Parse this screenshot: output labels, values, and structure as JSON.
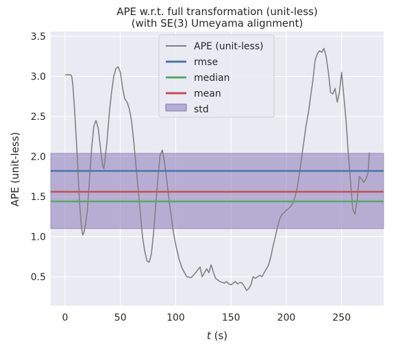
{
  "chart_data": {
    "type": "line",
    "title": "APE w.r.t. full transformation (unit-less)",
    "subtitle": "(with SE(3) Umeyama alignment)",
    "xlabel_italic": "t",
    "xlabel_unit": " (s)",
    "ylabel": "APE (unit-less)",
    "xlim": [
      -13,
      288
    ],
    "ylim": [
      0.14,
      3.56
    ],
    "xticks": [
      0,
      50,
      100,
      150,
      200,
      250
    ],
    "yticks": [
      0.5,
      1.0,
      1.5,
      2.0,
      2.5,
      3.0,
      3.5
    ],
    "grid": true,
    "legend_position": "top-center",
    "colors": {
      "background": "#eaeaf2",
      "grid": "#ffffff",
      "ape": "#808080",
      "rmse": "#4c72b0",
      "median": "#55a868",
      "mean": "#c44e52",
      "std": "#8172b2"
    },
    "series": [
      {
        "name": "APE (unit-less)",
        "kind": "line",
        "x": [
          0,
          5,
          6,
          7,
          8,
          9,
          10,
          11,
          12,
          13,
          14,
          15,
          16,
          17,
          18,
          20,
          22,
          24,
          26,
          28,
          30,
          32,
          34,
          35,
          36,
          38,
          40,
          42,
          44,
          46,
          48,
          50,
          52,
          54,
          56,
          58,
          60,
          62,
          64,
          66,
          68,
          70,
          72,
          74,
          76,
          78,
          80,
          82,
          84,
          86,
          88,
          90,
          92,
          94,
          96,
          98,
          100,
          103,
          106,
          110,
          114,
          118,
          122,
          124,
          126,
          128,
          130,
          132,
          134,
          136,
          138,
          140,
          142,
          144,
          146,
          148,
          150,
          152,
          154,
          156,
          158,
          160,
          162,
          164,
          166,
          168,
          170,
          172,
          174,
          176,
          178,
          180,
          182,
          184,
          186,
          188,
          190,
          192,
          194,
          196,
          198,
          200,
          202,
          204,
          206,
          208,
          210,
          212,
          214,
          216,
          218,
          220,
          222,
          224,
          226,
          228,
          230,
          232,
          234,
          236,
          238,
          240,
          242,
          244,
          246,
          248,
          250,
          252,
          254,
          256,
          258,
          260,
          262,
          264,
          266,
          268,
          270,
          272,
          274,
          275
        ],
        "y": [
          3.02,
          3.02,
          3.0,
          2.9,
          2.7,
          2.5,
          2.25,
          2.0,
          1.7,
          1.45,
          1.25,
          1.1,
          1.02,
          1.05,
          1.12,
          1.3,
          1.7,
          2.1,
          2.38,
          2.45,
          2.35,
          2.1,
          1.88,
          1.85,
          1.95,
          2.2,
          2.55,
          2.8,
          3.0,
          3.1,
          3.12,
          3.05,
          2.85,
          2.72,
          2.68,
          2.6,
          2.45,
          2.2,
          1.9,
          1.6,
          1.3,
          1.0,
          0.82,
          0.7,
          0.68,
          0.78,
          1.05,
          1.4,
          1.75,
          2.02,
          2.08,
          1.92,
          1.7,
          1.45,
          1.25,
          1.05,
          0.9,
          0.72,
          0.6,
          0.5,
          0.49,
          0.55,
          0.62,
          0.5,
          0.55,
          0.6,
          0.55,
          0.65,
          0.56,
          0.48,
          0.46,
          0.44,
          0.43,
          0.42,
          0.44,
          0.41,
          0.4,
          0.42,
          0.44,
          0.41,
          0.43,
          0.42,
          0.38,
          0.33,
          0.35,
          0.4,
          0.5,
          0.48,
          0.5,
          0.52,
          0.5,
          0.55,
          0.6,
          0.65,
          0.75,
          0.88,
          1.0,
          1.12,
          1.22,
          1.28,
          1.3,
          1.33,
          1.35,
          1.38,
          1.42,
          1.5,
          1.62,
          1.8,
          2.0,
          2.2,
          2.4,
          2.55,
          2.75,
          2.95,
          3.2,
          3.28,
          3.32,
          3.3,
          3.35,
          3.25,
          3.05,
          2.8,
          2.78,
          2.85,
          2.68,
          2.8,
          3.05,
          2.75,
          2.45,
          2.05,
          1.7,
          1.35,
          1.28,
          1.45,
          1.75,
          1.72,
          1.68,
          1.72,
          1.8,
          2.05
        ]
      },
      {
        "name": "rmse",
        "kind": "hline",
        "value": 1.82
      },
      {
        "name": "median",
        "kind": "hline",
        "value": 1.44
      },
      {
        "name": "mean",
        "kind": "hline",
        "value": 1.56
      },
      {
        "name": "std",
        "kind": "band",
        "lower": 1.1,
        "upper": 2.04
      }
    ]
  }
}
